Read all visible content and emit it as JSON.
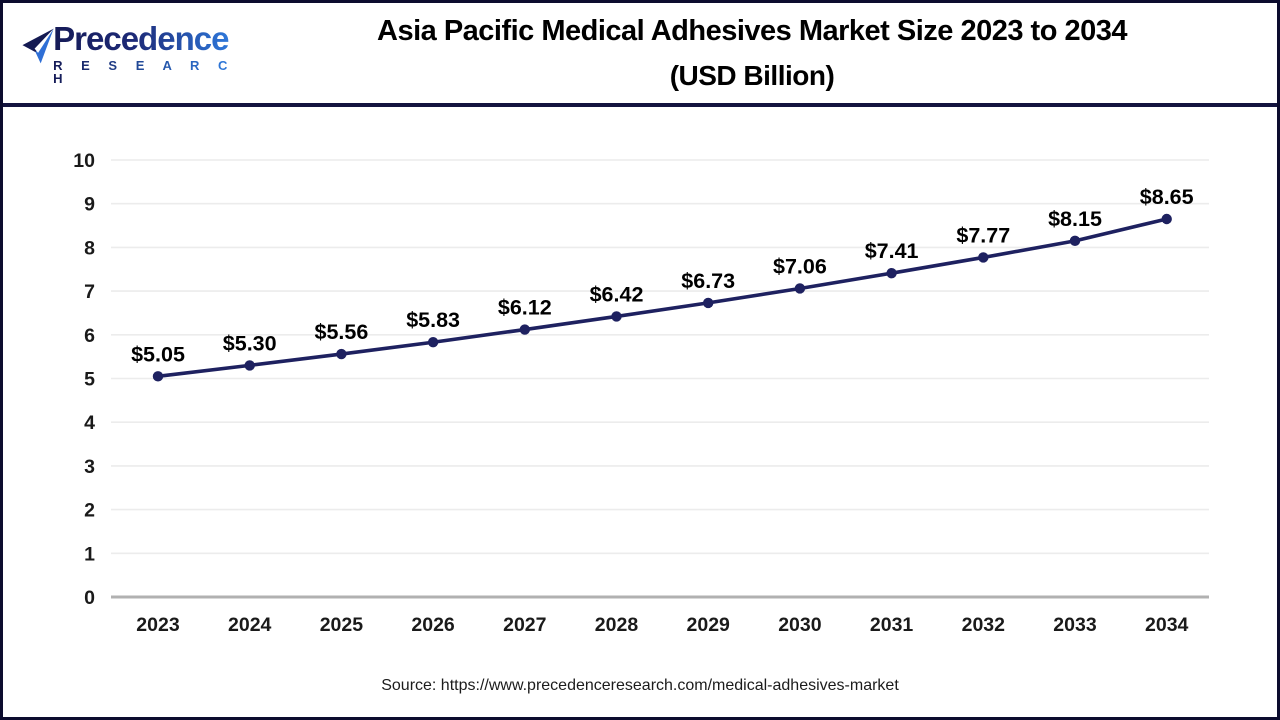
{
  "header": {
    "logo": {
      "brand_line1": "Precedence",
      "brand_line2": "R E S E A R C H",
      "icon": "paper-plane-icon",
      "color_dark": "#151a56",
      "color_light": "#2f7ce0"
    },
    "title_line1": "Asia Pacific Medical Adhesives Market Size 2023 to 2034",
    "title_line2": "(USD Billion)",
    "divider_color": "#14143f"
  },
  "chart_data": {
    "type": "line",
    "title": "Asia Pacific Medical Adhesives Market Size 2023 to 2034 (USD Billion)",
    "categories": [
      "2023",
      "2024",
      "2025",
      "2026",
      "2027",
      "2028",
      "2029",
      "2030",
      "2031",
      "2032",
      "2033",
      "2034"
    ],
    "values": [
      5.05,
      5.3,
      5.56,
      5.83,
      6.12,
      6.42,
      6.73,
      7.06,
      7.41,
      7.77,
      8.15,
      8.65
    ],
    "data_labels": [
      "$5.05",
      "$5.30",
      "$5.56",
      "$5.83",
      "$6.12",
      "$6.42",
      "$6.73",
      "$7.06",
      "$7.41",
      "$7.77",
      "$8.15",
      "$8.65"
    ],
    "xlabel": "",
    "ylabel": "",
    "ylim": [
      0,
      10
    ],
    "yticks": [
      0,
      1,
      2,
      3,
      4,
      5,
      6,
      7,
      8,
      9,
      10
    ],
    "grid": true,
    "legend": false,
    "line_color": "#1e2160",
    "marker_color": "#1e2160",
    "grid_color": "#ececec",
    "zero_axis_color": "#b1b1b1",
    "tick_label_color": "#1a1a1a",
    "data_label_color": "#000000"
  },
  "footer": {
    "source": "Source: https://www.precedenceresearch.com/medical-adhesives-market"
  }
}
